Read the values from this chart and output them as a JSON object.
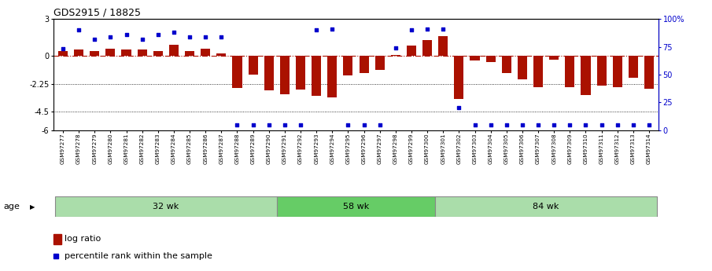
{
  "title": "GDS2915 / 18825",
  "samples": [
    "GSM97277",
    "GSM97278",
    "GSM97279",
    "GSM97280",
    "GSM97281",
    "GSM97282",
    "GSM97283",
    "GSM97284",
    "GSM97285",
    "GSM97286",
    "GSM97287",
    "GSM97288",
    "GSM97289",
    "GSM97290",
    "GSM97291",
    "GSM97292",
    "GSM97293",
    "GSM97294",
    "GSM97295",
    "GSM97296",
    "GSM97297",
    "GSM97298",
    "GSM97299",
    "GSM97300",
    "GSM97301",
    "GSM97302",
    "GSM97303",
    "GSM97304",
    "GSM97305",
    "GSM97306",
    "GSM97307",
    "GSM97308",
    "GSM97309",
    "GSM97310",
    "GSM97311",
    "GSM97312",
    "GSM97313",
    "GSM97314"
  ],
  "log_ratio": [
    0.4,
    0.55,
    0.38,
    0.6,
    0.5,
    0.52,
    0.38,
    0.9,
    0.42,
    0.62,
    0.22,
    -2.6,
    -1.5,
    -2.8,
    -3.1,
    -2.7,
    -3.25,
    -3.35,
    -1.55,
    -1.35,
    -1.15,
    0.08,
    0.85,
    1.3,
    1.6,
    -3.5,
    -0.38,
    -0.5,
    -1.4,
    -1.9,
    -2.55,
    -0.28,
    -2.5,
    -3.15,
    -2.4,
    -2.5,
    -1.75,
    -2.65
  ],
  "percentile": [
    73,
    90,
    82,
    84,
    86,
    82,
    86,
    88,
    84,
    84,
    84,
    5,
    5,
    5,
    5,
    5,
    90,
    91,
    5,
    5,
    5,
    74,
    90,
    91,
    91,
    20,
    5,
    5,
    5,
    5,
    5,
    5,
    5,
    5,
    5,
    5,
    5,
    5
  ],
  "groups": [
    {
      "label": "32 wk",
      "start": 0,
      "end": 14,
      "color": "#aaddaa"
    },
    {
      "label": "58 wk",
      "start": 14,
      "end": 24,
      "color": "#66cc66"
    },
    {
      "label": "84 wk",
      "start": 24,
      "end": 38,
      "color": "#aaddaa"
    }
  ],
  "ylim": [
    -6,
    3
  ],
  "yticks_left": [
    3,
    0,
    -2.25,
    -4.5,
    -6
  ],
  "yticks_right_pct": [
    100,
    75,
    50,
    25,
    0
  ],
  "bar_color": "#aa1100",
  "dot_color": "#0000cc",
  "bg_color": "#ffffff",
  "age_label": "age"
}
